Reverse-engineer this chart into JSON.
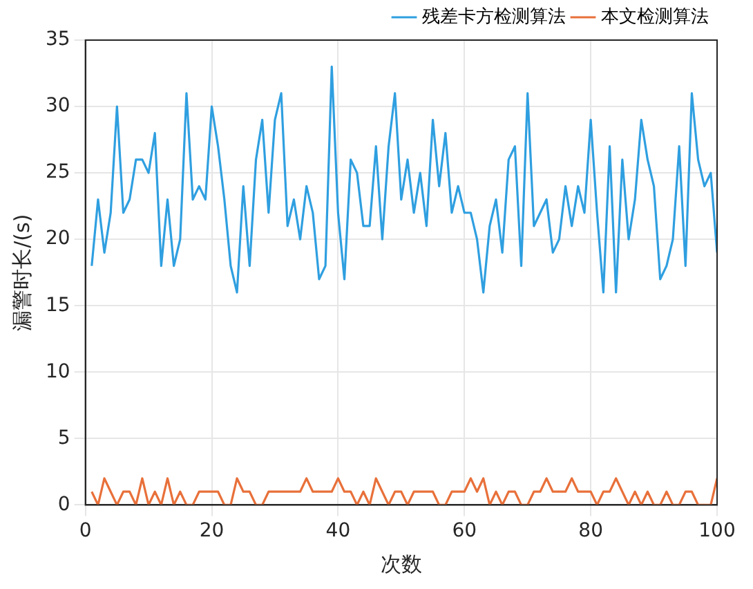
{
  "chart_data": {
    "type": "line",
    "xlabel": "次数",
    "ylabel": "漏警时长/(s)",
    "x": [
      1,
      2,
      3,
      4,
      5,
      6,
      7,
      8,
      9,
      10,
      11,
      12,
      13,
      14,
      15,
      16,
      17,
      18,
      19,
      20,
      21,
      22,
      23,
      24,
      25,
      26,
      27,
      28,
      29,
      30,
      31,
      32,
      33,
      34,
      35,
      36,
      37,
      38,
      39,
      40,
      41,
      42,
      43,
      44,
      45,
      46,
      47,
      48,
      49,
      50,
      51,
      52,
      53,
      54,
      55,
      56,
      57,
      58,
      59,
      60,
      61,
      62,
      63,
      64,
      65,
      66,
      67,
      68,
      69,
      70,
      71,
      72,
      73,
      74,
      75,
      76,
      77,
      78,
      79,
      80,
      81,
      82,
      83,
      84,
      85,
      86,
      87,
      88,
      89,
      90,
      91,
      92,
      93,
      94,
      95,
      96,
      97,
      98,
      99,
      100
    ],
    "series": [
      {
        "name": "残差卡方检测算法",
        "color": "#2f9fe0",
        "values": [
          18,
          23,
          19,
          22,
          30,
          22,
          23,
          26,
          26,
          25,
          28,
          18,
          23,
          18,
          20,
          31,
          23,
          24,
          23,
          30,
          27,
          23,
          18,
          16,
          24,
          18,
          26,
          29,
          22,
          29,
          31,
          21,
          23,
          20,
          24,
          22,
          17,
          18,
          33,
          22,
          17,
          26,
          25,
          21,
          21,
          27,
          20,
          27,
          31,
          23,
          26,
          22,
          25,
          21,
          29,
          24,
          28,
          22,
          24,
          22,
          22,
          20,
          16,
          21,
          23,
          19,
          26,
          27,
          18,
          31,
          21,
          22,
          23,
          19,
          20,
          24,
          21,
          24,
          22,
          29,
          22,
          16,
          27,
          16,
          26,
          20,
          23,
          29,
          26,
          24,
          17,
          18,
          20,
          27,
          18,
          31,
          26,
          24,
          25,
          19
        ]
      },
      {
        "name": "本文检测算法",
        "color": "#e8703a",
        "values": [
          1,
          0,
          2,
          1,
          0,
          1,
          1,
          0,
          2,
          0,
          1,
          0,
          2,
          0,
          1,
          0,
          0,
          1,
          1,
          1,
          1,
          0,
          0,
          2,
          1,
          1,
          0,
          0,
          1,
          1,
          1,
          1,
          1,
          1,
          2,
          1,
          1,
          1,
          1,
          2,
          1,
          1,
          0,
          1,
          0,
          2,
          1,
          0,
          1,
          1,
          0,
          1,
          1,
          1,
          1,
          0,
          0,
          1,
          1,
          1,
          2,
          1,
          2,
          0,
          1,
          0,
          1,
          1,
          0,
          0,
          1,
          1,
          2,
          1,
          1,
          1,
          2,
          1,
          1,
          1,
          0,
          1,
          1,
          2,
          1,
          0,
          1,
          0,
          1,
          0,
          0,
          1,
          0,
          0,
          1,
          1,
          0,
          0,
          0,
          2
        ]
      }
    ],
    "xlim": [
      0,
      100
    ],
    "xticks": [
      0,
      20,
      40,
      60,
      80,
      100
    ],
    "ylim": [
      0,
      35
    ],
    "yticks": [
      0,
      5,
      10,
      15,
      20,
      25,
      30,
      35
    ],
    "grid": true,
    "legend": "top right",
    "marker": "none",
    "line_style": "solid"
  }
}
